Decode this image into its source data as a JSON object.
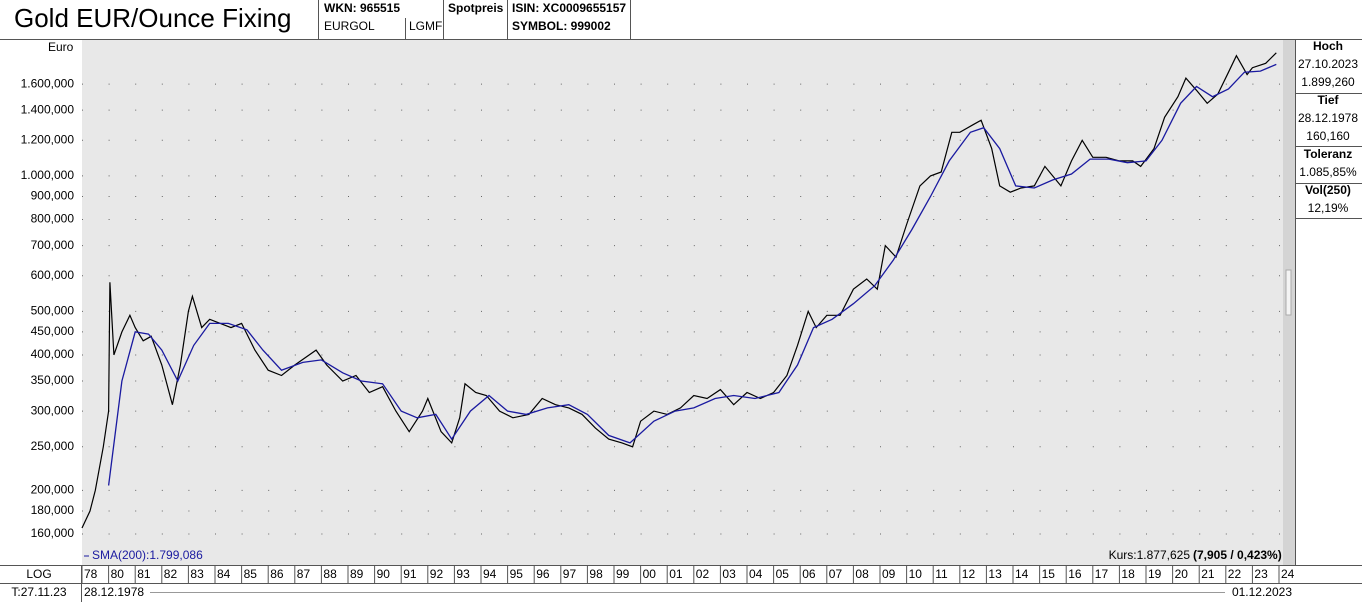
{
  "header": {
    "title": "Gold EUR/Ounce Fixing",
    "wkn": "WKN: 965515",
    "code": "EURGOL",
    "exchange": "LGMF",
    "kind": "Spotpreis",
    "isin": "ISIN: XC0009655157",
    "symbol": "SYMBOL: 999002"
  },
  "stats": [
    {
      "label": "Hoch",
      "lines": [
        "27.10.2023",
        "1.899,260"
      ]
    },
    {
      "label": "Tief",
      "lines": [
        "28.12.1978",
        "160,160"
      ]
    },
    {
      "label": "Toleranz",
      "lines": [
        "1.085,85%"
      ]
    },
    {
      "label": "Vol(250)",
      "lines": [
        "12,19%"
      ]
    }
  ],
  "footer": {
    "scale": "LOG",
    "date": "T:27.11.23",
    "start": "28.12.1978",
    "end": "01.12.2023",
    "kurs": "Kurs:1.877,625",
    "change": "(7,905 / 0,423%)"
  },
  "chart_data": {
    "type": "line",
    "y_label": "Euro",
    "log_scale": true,
    "grid": true,
    "xlim": [
      1979.0,
      2024.15
    ],
    "ylim": [
      136.5,
      2005
    ],
    "xticks": [
      {
        "value": 1979,
        "label": "78"
      },
      {
        "value": 1980,
        "label": "80"
      },
      {
        "value": 1981,
        "label": "81"
      },
      {
        "value": 1982,
        "label": "82"
      },
      {
        "value": 1983,
        "label": "83"
      },
      {
        "value": 1984,
        "label": "84"
      },
      {
        "value": 1985,
        "label": "85"
      },
      {
        "value": 1986,
        "label": "86"
      },
      {
        "value": 1987,
        "label": "87"
      },
      {
        "value": 1988,
        "label": "88"
      },
      {
        "value": 1989,
        "label": "89"
      },
      {
        "value": 1990,
        "label": "90"
      },
      {
        "value": 1991,
        "label": "91"
      },
      {
        "value": 1992,
        "label": "92"
      },
      {
        "value": 1993,
        "label": "93"
      },
      {
        "value": 1994,
        "label": "94"
      },
      {
        "value": 1995,
        "label": "95"
      },
      {
        "value": 1996,
        "label": "96"
      },
      {
        "value": 1997,
        "label": "97"
      },
      {
        "value": 1998,
        "label": "98"
      },
      {
        "value": 1999,
        "label": "99"
      },
      {
        "value": 2000,
        "label": "00"
      },
      {
        "value": 2001,
        "label": "01"
      },
      {
        "value": 2002,
        "label": "02"
      },
      {
        "value": 2003,
        "label": "03"
      },
      {
        "value": 2004,
        "label": "04"
      },
      {
        "value": 2005,
        "label": "05"
      },
      {
        "value": 2006,
        "label": "06"
      },
      {
        "value": 2007,
        "label": "07"
      },
      {
        "value": 2008,
        "label": "08"
      },
      {
        "value": 2009,
        "label": "09"
      },
      {
        "value": 2010,
        "label": "10"
      },
      {
        "value": 2011,
        "label": "11"
      },
      {
        "value": 2012,
        "label": "12"
      },
      {
        "value": 2013,
        "label": "13"
      },
      {
        "value": 2014,
        "label": "14"
      },
      {
        "value": 2015,
        "label": "15"
      },
      {
        "value": 2016,
        "label": "16"
      },
      {
        "value": 2017,
        "label": "17"
      },
      {
        "value": 2018,
        "label": "18"
      },
      {
        "value": 2019,
        "label": "19"
      },
      {
        "value": 2020,
        "label": "20"
      },
      {
        "value": 2021,
        "label": "21"
      },
      {
        "value": 2022,
        "label": "22"
      },
      {
        "value": 2023,
        "label": "23"
      },
      {
        "value": 2024,
        "label": "24"
      }
    ],
    "yticks": [
      {
        "value": 160,
        "label": "160,000"
      },
      {
        "value": 180,
        "label": "180,000"
      },
      {
        "value": 200,
        "label": "200,000"
      },
      {
        "value": 250,
        "label": "250,000"
      },
      {
        "value": 300,
        "label": "300,000"
      },
      {
        "value": 350,
        "label": "350,000"
      },
      {
        "value": 400,
        "label": "400,000"
      },
      {
        "value": 450,
        "label": "450,000"
      },
      {
        "value": 500,
        "label": "500,000"
      },
      {
        "value": 600,
        "label": "600,000"
      },
      {
        "value": 700,
        "label": "700,000"
      },
      {
        "value": 800,
        "label": "800,000"
      },
      {
        "value": 900,
        "label": "900,000"
      },
      {
        "value": 1000,
        "label": "1.000,000"
      },
      {
        "value": 1200,
        "label": "1.200,000"
      },
      {
        "value": 1400,
        "label": "1.400,000"
      },
      {
        "value": 1600,
        "label": "1.600,000"
      }
    ],
    "series": [
      {
        "color": "#000000",
        "x": [
          1979.0,
          1979.3,
          1979.5,
          1979.8,
          1980.0,
          1980.05,
          1980.2,
          1980.5,
          1980.8,
          1981.0,
          1981.3,
          1981.6,
          1982.0,
          1982.4,
          1982.7,
          1983.0,
          1983.15,
          1983.5,
          1983.8,
          1984.2,
          1984.6,
          1985.0,
          1985.5,
          1986.0,
          1986.5,
          1987.0,
          1987.8,
          1988.2,
          1988.8,
          1989.3,
          1989.8,
          1990.3,
          1990.8,
          1991.3,
          1991.8,
          1992.0,
          1992.5,
          1992.9,
          1993.2,
          1993.4,
          1993.8,
          1994.2,
          1994.7,
          1995.2,
          1995.8,
          1996.3,
          1996.8,
          1997.3,
          1997.8,
          1998.3,
          1998.8,
          1999.3,
          1999.7,
          2000.0,
          2000.5,
          2001.0,
          2001.5,
          2002.0,
          2002.5,
          2003.0,
          2003.5,
          2004.0,
          2004.5,
          2005.0,
          2005.5,
          2005.9,
          2006.3,
          2006.6,
          2007.0,
          2007.5,
          2008.0,
          2008.5,
          2008.9,
          2009.2,
          2009.6,
          2010.0,
          2010.5,
          2010.9,
          2011.3,
          2011.7,
          2012.0,
          2012.5,
          2012.8,
          2013.2,
          2013.5,
          2013.9,
          2014.3,
          2014.8,
          2015.2,
          2015.8,
          2016.2,
          2016.6,
          2017.0,
          2017.5,
          2018.0,
          2018.5,
          2018.8,
          2019.3,
          2019.7,
          2020.2,
          2020.5,
          2020.9,
          2021.3,
          2021.7,
          2022.1,
          2022.4,
          2022.8,
          2023.0,
          2023.5,
          2023.9
        ],
        "values": [
          165,
          180,
          200,
          250,
          300,
          580,
          400,
          450,
          490,
          460,
          430,
          440,
          380,
          310,
          380,
          500,
          540,
          460,
          480,
          470,
          460,
          470,
          410,
          370,
          360,
          380,
          410,
          380,
          350,
          360,
          330,
          340,
          300,
          270,
          300,
          320,
          270,
          255,
          290,
          345,
          330,
          325,
          300,
          290,
          295,
          320,
          310,
          305,
          295,
          275,
          260,
          255,
          250,
          285,
          300,
          295,
          305,
          325,
          320,
          335,
          310,
          330,
          320,
          330,
          360,
          420,
          500,
          460,
          490,
          490,
          560,
          590,
          560,
          700,
          660,
          780,
          950,
          1000,
          1020,
          1250,
          1250,
          1300,
          1330,
          1150,
          950,
          920,
          940,
          950,
          1050,
          950,
          1080,
          1200,
          1100,
          1100,
          1080,
          1080,
          1050,
          1150,
          1350,
          1500,
          1650,
          1550,
          1450,
          1520,
          1700,
          1850,
          1680,
          1740,
          1780,
          1877.625
        ]
      },
      {
        "name": "SMA(200):1.799,086",
        "color": "#1a1aa0",
        "x": [
          1980.0,
          1980.5,
          1981.0,
          1981.5,
          1982.0,
          1982.6,
          1983.2,
          1983.8,
          1984.5,
          1985.2,
          1985.8,
          1986.5,
          1987.3,
          1988.0,
          1988.8,
          1989.5,
          1990.3,
          1991.0,
          1991.6,
          1992.3,
          1992.9,
          1993.6,
          1994.3,
          1995.0,
          1995.7,
          1996.5,
          1997.3,
          1998.0,
          1998.8,
          1999.6,
          2000.5,
          2001.3,
          2002.0,
          2002.8,
          2003.5,
          2004.3,
          2005.2,
          2005.9,
          2006.5,
          2007.2,
          2008.0,
          2008.8,
          2009.5,
          2010.2,
          2010.9,
          2011.6,
          2012.4,
          2012.9,
          2013.5,
          2014.1,
          2014.8,
          2015.5,
          2016.2,
          2016.9,
          2017.6,
          2018.3,
          2019.0,
          2019.6,
          2020.3,
          2020.9,
          2021.5,
          2022.1,
          2022.7,
          2023.3,
          2023.9
        ],
        "values": [
          205,
          350,
          450,
          445,
          410,
          350,
          420,
          470,
          470,
          455,
          410,
          370,
          385,
          390,
          365,
          350,
          345,
          300,
          290,
          295,
          260,
          300,
          325,
          300,
          295,
          305,
          310,
          295,
          265,
          255,
          285,
          300,
          305,
          320,
          325,
          320,
          330,
          380,
          460,
          480,
          520,
          570,
          650,
          760,
          900,
          1080,
          1250,
          1280,
          1150,
          950,
          940,
          980,
          1010,
          1090,
          1090,
          1070,
          1080,
          1200,
          1450,
          1580,
          1500,
          1560,
          1700,
          1710,
          1770
        ]
      }
    ]
  }
}
